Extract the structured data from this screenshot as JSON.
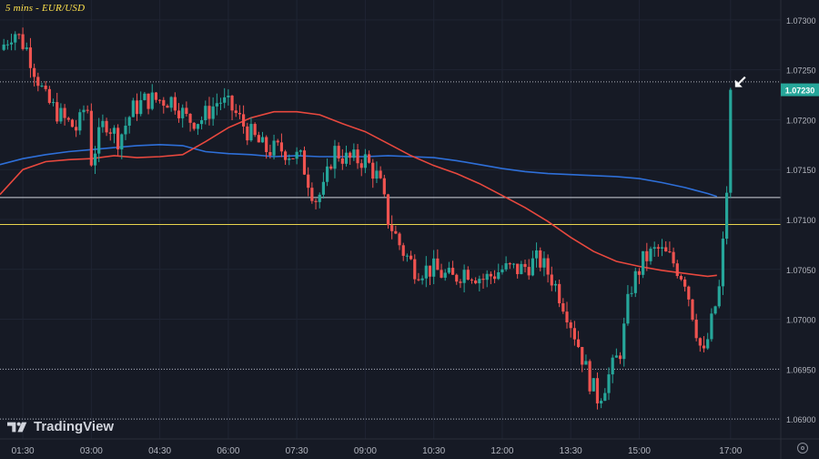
{
  "header": {
    "title": "5 mins - EUR/USD"
  },
  "brand": {
    "name": "TradingView"
  },
  "colors": {
    "background": "#161a25",
    "up": "#26a69a",
    "down": "#ef5350",
    "ma_fast": "#e8483e",
    "ma_slow": "#2e6fd8",
    "level_white": "#d1d4dc",
    "level_yellow": "#e8d44d",
    "price_badge": "#26a69a",
    "axis_text": "#b2b5be"
  },
  "chart_data": {
    "type": "candlestick",
    "title": "5 mins - EUR/USD",
    "xlabel": "",
    "ylabel": "",
    "ylim": [
      1.0688,
      1.0732
    ],
    "y_ticks": [
      "1.06900",
      "1.06950",
      "1.07000",
      "1.07050",
      "1.07100",
      "1.07150",
      "1.07200",
      "1.07250",
      "1.07300"
    ],
    "x_ticks": [
      "01:30",
      "03:00",
      "04:30",
      "06:00",
      "07:30",
      "09:00",
      "10:30",
      "12:00",
      "13:30",
      "15:00",
      "17:00"
    ],
    "x_tick_hours": [
      1.5,
      3.0,
      4.5,
      6.0,
      7.5,
      9.0,
      10.5,
      12.0,
      13.5,
      15.0,
      17.0
    ],
    "xlim_hours": [
      1.0,
      18.1
    ],
    "last_price": "1.07230",
    "last_price_value": 1.0723,
    "dotted_levels": [
      1.07238,
      1.0695,
      1.069
    ],
    "solid_levels": [
      {
        "value": 1.07122,
        "color": "level_white"
      },
      {
        "value": 1.07095,
        "color": "level_yellow"
      }
    ],
    "ma_fast": [
      [
        1.0,
        1.07125
      ],
      [
        1.5,
        1.0715
      ],
      [
        2.0,
        1.07158
      ],
      [
        2.5,
        1.0716
      ],
      [
        3.0,
        1.07161
      ],
      [
        3.5,
        1.07164
      ],
      [
        4.0,
        1.07162
      ],
      [
        4.5,
        1.07163
      ],
      [
        5.0,
        1.07165
      ],
      [
        5.5,
        1.07178
      ],
      [
        6.0,
        1.07192
      ],
      [
        6.5,
        1.07202
      ],
      [
        7.0,
        1.07208
      ],
      [
        7.5,
        1.07208
      ],
      [
        8.0,
        1.07205
      ],
      [
        8.5,
        1.07196
      ],
      [
        9.0,
        1.07188
      ],
      [
        9.5,
        1.07176
      ],
      [
        10.0,
        1.07164
      ],
      [
        10.5,
        1.07154
      ],
      [
        11.0,
        1.07146
      ],
      [
        11.5,
        1.07136
      ],
      [
        12.0,
        1.07124
      ],
      [
        12.5,
        1.07112
      ],
      [
        13.0,
        1.07098
      ],
      [
        13.5,
        1.07082
      ],
      [
        14.0,
        1.07068
      ],
      [
        14.5,
        1.07058
      ],
      [
        15.0,
        1.07053
      ],
      [
        15.5,
        1.07049
      ],
      [
        16.0,
        1.07046
      ],
      [
        16.5,
        1.07043
      ],
      [
        16.7,
        1.07044
      ]
    ],
    "ma_slow": [
      [
        1.0,
        1.07155
      ],
      [
        1.5,
        1.07161
      ],
      [
        2.0,
        1.07165
      ],
      [
        2.5,
        1.07168
      ],
      [
        3.0,
        1.0717
      ],
      [
        3.5,
        1.07172
      ],
      [
        4.0,
        1.07174
      ],
      [
        4.5,
        1.07175
      ],
      [
        5.0,
        1.07174
      ],
      [
        5.5,
        1.07168
      ],
      [
        6.0,
        1.07166
      ],
      [
        6.5,
        1.07165
      ],
      [
        7.0,
        1.07163
      ],
      [
        7.5,
        1.07164
      ],
      [
        8.0,
        1.07163
      ],
      [
        8.5,
        1.07163
      ],
      [
        9.0,
        1.07163
      ],
      [
        9.5,
        1.07164
      ],
      [
        10.0,
        1.07163
      ],
      [
        10.5,
        1.07162
      ],
      [
        11.0,
        1.07159
      ],
      [
        11.5,
        1.07155
      ],
      [
        12.0,
        1.07151
      ],
      [
        12.5,
        1.07148
      ],
      [
        13.0,
        1.07146
      ],
      [
        13.5,
        1.07145
      ],
      [
        14.0,
        1.07144
      ],
      [
        14.5,
        1.07143
      ],
      [
        15.0,
        1.07141
      ],
      [
        15.5,
        1.07137
      ],
      [
        16.0,
        1.07132
      ],
      [
        16.5,
        1.07126
      ],
      [
        16.7,
        1.07123
      ]
    ],
    "price_path": [
      [
        1.0,
        1.0727
      ],
      [
        1.3,
        1.0729
      ],
      [
        1.6,
        1.0727
      ],
      [
        2.0,
        1.0722
      ],
      [
        2.4,
        1.072
      ],
      [
        2.7,
        1.0719
      ],
      [
        2.9,
        1.0722
      ],
      [
        3.0,
        1.0716
      ],
      [
        3.3,
        1.072
      ],
      [
        3.6,
        1.0718
      ],
      [
        3.9,
        1.0721
      ],
      [
        4.2,
        1.0722
      ],
      [
        4.5,
        1.0722
      ],
      [
        4.8,
        1.0722
      ],
      [
        5.1,
        1.072
      ],
      [
        5.4,
        1.072
      ],
      [
        5.8,
        1.0722
      ],
      [
        6.1,
        1.0721
      ],
      [
        6.4,
        1.0719
      ],
      [
        6.8,
        1.0717
      ],
      [
        7.2,
        1.0717
      ],
      [
        7.6,
        1.0716
      ],
      [
        7.9,
        1.0712
      ],
      [
        8.1,
        1.0713
      ],
      [
        8.3,
        1.0717
      ],
      [
        8.6,
        1.0716
      ],
      [
        9.0,
        1.0716
      ],
      [
        9.3,
        1.0714
      ],
      [
        9.5,
        1.071
      ],
      [
        9.8,
        1.0707
      ],
      [
        10.1,
        1.0705
      ],
      [
        10.5,
        1.0705
      ],
      [
        10.9,
        1.0704
      ],
      [
        11.2,
        1.0705
      ],
      [
        11.6,
        1.0704
      ],
      [
        12.0,
        1.0705
      ],
      [
        12.4,
        1.0705
      ],
      [
        12.8,
        1.0706
      ],
      [
        13.1,
        1.0704
      ],
      [
        13.4,
        1.0701
      ],
      [
        13.7,
        1.0697
      ],
      [
        13.9,
        1.0694
      ],
      [
        14.1,
        1.0692
      ],
      [
        14.3,
        1.0694
      ],
      [
        14.6,
        1.0697
      ],
      [
        14.8,
        1.0703
      ],
      [
        15.1,
        1.0706
      ],
      [
        15.4,
        1.0707
      ],
      [
        15.7,
        1.0706
      ],
      [
        16.0,
        1.0704
      ],
      [
        16.2,
        1.07
      ],
      [
        16.4,
        1.0696
      ],
      [
        16.6,
        1.07
      ],
      [
        16.75,
        1.0703
      ],
      [
        16.9,
        1.0711
      ],
      [
        17.0,
        1.0723
      ]
    ],
    "spike_high": 1.07232
  }
}
